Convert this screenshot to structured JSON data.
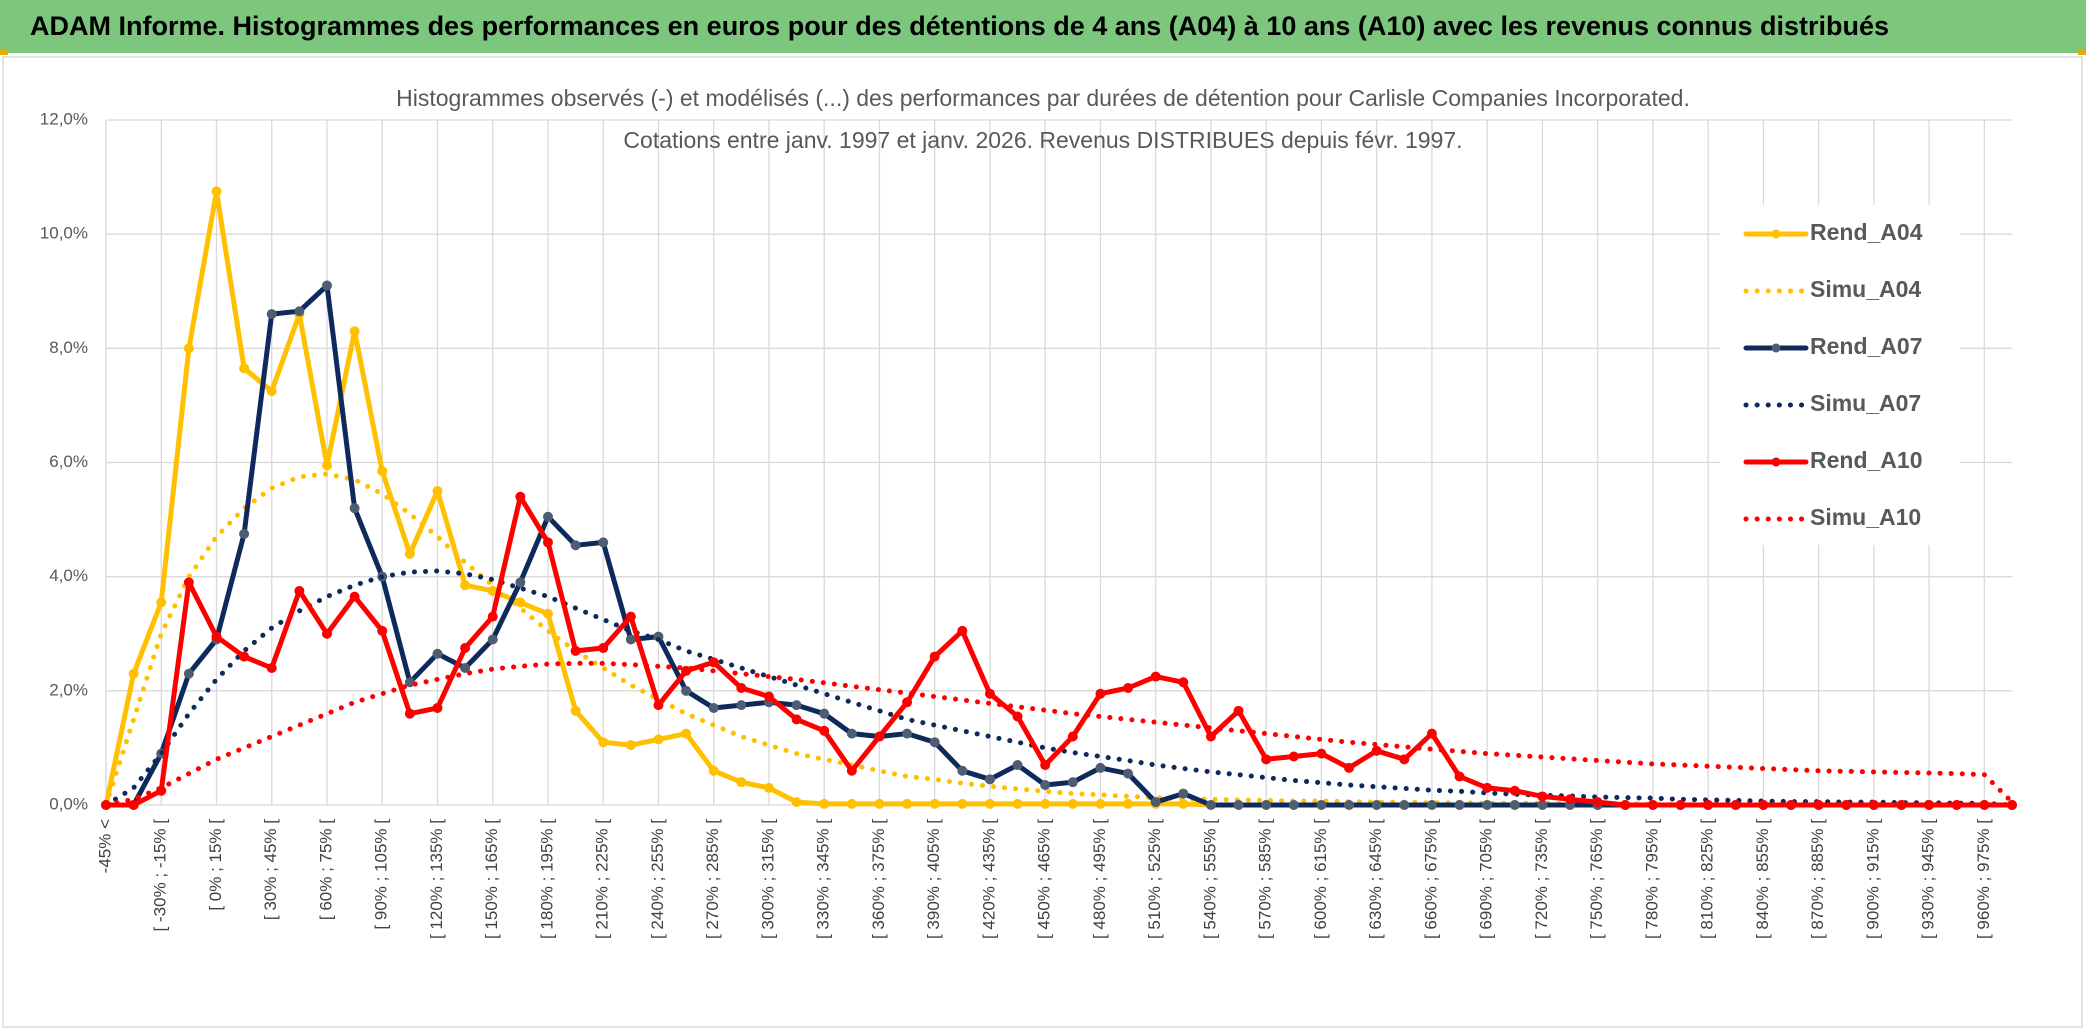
{
  "chart_data": {
    "type": "line",
    "header": "ADAM Informe. Histogrammes des performances en euros pour des détentions de 4 ans (A04) à 10 ans (A10) avec les revenus connus distribués",
    "title": [
      "Histogrammes observés (-) et modélisés (...) des performances par durées de détention pour Carlisle Companies Incorporated.",
      "Cotations entre janv. 1997 et janv. 2026. Revenus DISTRIBUES depuis févr. 1997."
    ],
    "categories": [
      "-45% <",
      null,
      "[ -30% ; -15% [",
      null,
      "[ 0% ; 15% [",
      null,
      "[ 30% ; 45% [",
      null,
      "[ 60% ; 75% [",
      null,
      "[ 90% ; 105% [",
      null,
      "[ 120% ; 135% [",
      null,
      "[ 150% ; 165% [",
      null,
      "[ 180% ; 195% [",
      null,
      "[ 210% ; 225% [",
      null,
      "[ 240% ; 255% [",
      null,
      "[ 270% ; 285% [",
      null,
      "[ 300% ; 315% [",
      null,
      "[ 330% ; 345% [",
      null,
      "[ 360% ; 375% [",
      null,
      "[ 390% ; 405% [",
      null,
      "[ 420% ; 435% [",
      null,
      "[ 450% ; 465% [",
      null,
      "[ 480% ; 495% [",
      null,
      "[ 510% ; 525% [",
      null,
      "[ 540% ; 555% [",
      null,
      "[ 570% ; 585% [",
      null,
      "[ 600% ; 615% [",
      null,
      "[ 630% ; 645% [",
      null,
      "[ 660% ; 675% [",
      null,
      "[ 690% ; 705% [",
      null,
      "[ 720% ; 735% [",
      null,
      "[ 750% ; 765% [",
      null,
      "[ 780% ; 795% [",
      null,
      "[ 810% ; 825% [",
      null,
      "[ 840% ; 855% [",
      null,
      "[ 870% ; 885% [",
      null,
      "[ 900% ; 915% [",
      null,
      "[ 930% ; 945% [",
      null,
      "[ 960% ; 975% [",
      null
    ],
    "ylim": [
      0,
      12
    ],
    "yticks": [
      {
        "value": 0,
        "label": "0,0%"
      },
      {
        "value": 2,
        "label": "2,0%"
      },
      {
        "value": 4,
        "label": "4,0%"
      },
      {
        "value": 6,
        "label": "6,0%"
      },
      {
        "value": 8,
        "label": "8,0%"
      },
      {
        "value": 10,
        "label": "10,0%"
      },
      {
        "value": 12,
        "label": "12,0%"
      }
    ],
    "grid": true,
    "legend": "right",
    "series": [
      {
        "name": "Rend_A04",
        "color": "#FFC000",
        "line_style": "solid",
        "markers": true,
        "marker_color": "#FFC000",
        "values": [
          0,
          2.3,
          3.55,
          8.0,
          10.75,
          7.65,
          7.25,
          8.6,
          5.95,
          8.3,
          5.85,
          4.4,
          5.5,
          3.85,
          3.75,
          3.55,
          3.35,
          1.65,
          1.1,
          1.05,
          1.15,
          1.25,
          0.6,
          0.4,
          0.3,
          0.05,
          0.02,
          0.02,
          0.02,
          0.02,
          0.02,
          0.02,
          0.02,
          0.02,
          0.02,
          0.02,
          0.02,
          0.02,
          0.02,
          0.02,
          0,
          0,
          0,
          0,
          0,
          0,
          0,
          0,
          0,
          0,
          0,
          0,
          0,
          0,
          0,
          0,
          0,
          0,
          0,
          0,
          0,
          0,
          0,
          0,
          0,
          0,
          0,
          0,
          0,
          0
        ]
      },
      {
        "name": "Simu_A04",
        "color": "#FFC000",
        "line_style": "dotted",
        "markers": false,
        "values": [
          0,
          1.5,
          3.0,
          4.0,
          4.7,
          5.2,
          5.55,
          5.75,
          5.8,
          5.7,
          5.45,
          5.1,
          4.7,
          4.25,
          3.85,
          3.45,
          3.05,
          2.7,
          2.4,
          2.1,
          1.85,
          1.6,
          1.4,
          1.2,
          1.05,
          0.9,
          0.8,
          0.7,
          0.6,
          0.5,
          0.45,
          0.38,
          0.33,
          0.28,
          0.24,
          0.2,
          0.18,
          0.15,
          0.13,
          0.11,
          0.1,
          0.09,
          0.08,
          0.07,
          0.07,
          0.06,
          0.05,
          0.05,
          0.04,
          0.04,
          0.03,
          0.03,
          0.03,
          0.02,
          0.02,
          0.02,
          0.02,
          0.01,
          0.01,
          0.01,
          0.01,
          0.01,
          0.01,
          0.01,
          0.01,
          0.01,
          0.01,
          0.01,
          0.01,
          0
        ]
      },
      {
        "name": "Rend_A07",
        "color": "#0E2A5C",
        "line_style": "solid",
        "markers": true,
        "marker_color": "#4F5D73",
        "values": [
          0,
          0,
          0.9,
          2.3,
          2.9,
          4.75,
          8.6,
          8.65,
          9.1,
          5.2,
          4.0,
          2.15,
          2.65,
          2.4,
          2.9,
          3.9,
          5.05,
          4.55,
          4.6,
          2.9,
          2.95,
          2.0,
          1.7,
          1.75,
          1.8,
          1.75,
          1.6,
          1.25,
          1.2,
          1.25,
          1.1,
          0.6,
          0.45,
          0.7,
          0.35,
          0.4,
          0.65,
          0.55,
          0.05,
          0.2,
          0,
          0,
          0,
          0,
          0,
          0,
          0,
          0,
          0,
          0,
          0,
          0,
          0,
          0,
          0,
          0,
          0,
          0,
          0,
          0,
          0,
          0,
          0,
          0,
          0,
          0,
          0,
          0,
          0,
          0
        ]
      },
      {
        "name": "Simu_A07",
        "color": "#0E2A5C",
        "line_style": "dotted",
        "markers": false,
        "values": [
          0,
          0.3,
          0.9,
          1.6,
          2.2,
          2.7,
          3.1,
          3.4,
          3.65,
          3.85,
          4.0,
          4.08,
          4.1,
          4.05,
          3.95,
          3.8,
          3.65,
          3.45,
          3.25,
          3.05,
          2.9,
          2.7,
          2.55,
          2.4,
          2.25,
          2.1,
          1.95,
          1.8,
          1.65,
          1.5,
          1.4,
          1.3,
          1.2,
          1.1,
          1.0,
          0.92,
          0.85,
          0.78,
          0.7,
          0.64,
          0.58,
          0.53,
          0.48,
          0.43,
          0.39,
          0.35,
          0.32,
          0.29,
          0.26,
          0.24,
          0.21,
          0.19,
          0.17,
          0.16,
          0.14,
          0.13,
          0.12,
          0.1,
          0.09,
          0.08,
          0.07,
          0.06,
          0.06,
          0.05,
          0.05,
          0.04,
          0.04,
          0.03,
          0.03,
          0
        ]
      },
      {
        "name": "Rend_A10",
        "color": "#FF0000",
        "line_style": "solid",
        "markers": true,
        "marker_color": "#FF0000",
        "values": [
          0,
          0,
          0.25,
          3.9,
          2.95,
          2.6,
          2.4,
          3.75,
          3.0,
          3.65,
          3.05,
          1.6,
          1.7,
          2.75,
          3.3,
          5.4,
          4.6,
          2.7,
          2.75,
          3.3,
          1.75,
          2.35,
          2.5,
          2.05,
          1.9,
          1.5,
          1.3,
          0.6,
          1.2,
          1.8,
          2.6,
          3.05,
          1.95,
          1.55,
          0.7,
          1.2,
          1.95,
          2.05,
          2.25,
          2.15,
          1.2,
          1.65,
          0.8,
          0.85,
          0.9,
          0.65,
          0.95,
          0.8,
          1.25,
          0.5,
          0.3,
          0.25,
          0.15,
          0.1,
          0.05,
          0,
          0,
          0,
          0,
          0,
          0,
          0,
          0,
          0,
          0,
          0,
          0,
          0,
          0,
          0
        ]
      },
      {
        "name": "Simu_A10",
        "color": "#FF0000",
        "line_style": "dotted",
        "markers": false,
        "values": [
          0,
          0.1,
          0.3,
          0.55,
          0.8,
          1.0,
          1.2,
          1.4,
          1.6,
          1.8,
          1.95,
          2.1,
          2.2,
          2.3,
          2.38,
          2.43,
          2.47,
          2.48,
          2.48,
          2.46,
          2.43,
          2.4,
          2.35,
          2.3,
          2.25,
          2.2,
          2.14,
          2.08,
          2.02,
          1.96,
          1.9,
          1.84,
          1.78,
          1.72,
          1.66,
          1.6,
          1.55,
          1.5,
          1.45,
          1.4,
          1.35,
          1.3,
          1.25,
          1.2,
          1.15,
          1.1,
          1.06,
          1.02,
          0.98,
          0.94,
          0.9,
          0.87,
          0.84,
          0.81,
          0.78,
          0.75,
          0.72,
          0.7,
          0.68,
          0.66,
          0.64,
          0.62,
          0.6,
          0.59,
          0.58,
          0.57,
          0.56,
          0.55,
          0.53,
          0.05
        ]
      }
    ]
  }
}
